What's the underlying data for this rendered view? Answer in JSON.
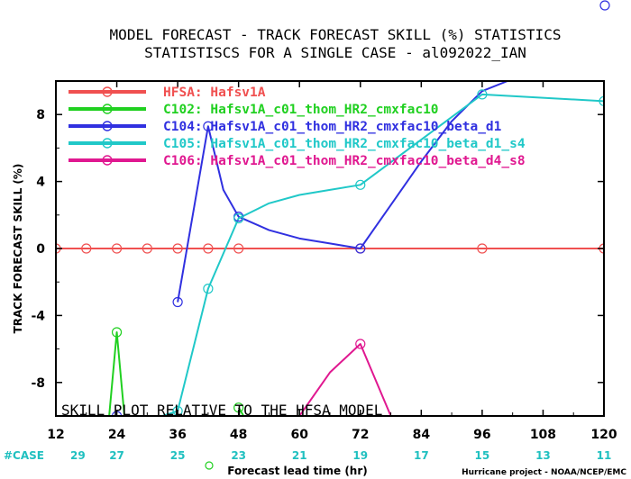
{
  "chart_data": {
    "type": "line",
    "title": "MODEL FORECAST - TRACK FORECAST SKILL (%) STATISTICS",
    "subtitle": "STATISTISCS FOR A SINGLE CASE - al092022_IAN",
    "xlabel": "Forecast lead time (hr)",
    "ylabel": "TRACK FORECAST SKILL (%)",
    "xlim": [
      12,
      120
    ],
    "ylim": [
      -10,
      10
    ],
    "xticks": [
      "12",
      "24",
      "36",
      "48",
      "60",
      "72",
      "84",
      "96",
      "108",
      "120"
    ],
    "yticks": [
      "8",
      "4",
      "0",
      "-4",
      "-8"
    ],
    "annotation": "SKILL PLOT RELATIVE TO THE HFSA MODEL",
    "credit": "Hurricane project - NOAA/NCEP/EMC",
    "case_label": "#CASE",
    "case_counts": [
      "29",
      "27",
      "25",
      "23",
      "21",
      "19",
      "17",
      "15",
      "13",
      "11"
    ],
    "grid": false,
    "legend_position": "top-left",
    "series": [
      {
        "name": "HFSA: Hafsv1A",
        "color": "#f05050",
        "x": [
          12,
          18,
          24,
          30,
          36,
          42,
          48,
          54,
          60,
          66,
          72,
          78,
          84,
          90,
          96,
          102,
          108,
          114,
          120
        ],
        "y": [
          0,
          0,
          0,
          0,
          0,
          0,
          0,
          0,
          0,
          0,
          0,
          0,
          0,
          0,
          0,
          0,
          0,
          0,
          0
        ],
        "markers": [
          12,
          18,
          24,
          30,
          36,
          42,
          48,
          72,
          96,
          120
        ]
      },
      {
        "name": "C102: Hafsv1A_c01_thom_HR2_cmxfac10",
        "color": "#20d020",
        "x": [
          22.5,
          24,
          25.5,
          47,
          48,
          49
        ],
        "y": [
          -10,
          -5,
          -10,
          -10,
          -9.5,
          -10
        ],
        "breaks": [
          3
        ],
        "markers": [
          24,
          48
        ]
      },
      {
        "name": "C104: Hafsv1A_c01_thom_HR2_cmxfac10_beta_d1",
        "color": "#3030e0",
        "x": [
          24,
          35,
          36,
          42,
          45,
          48,
          54,
          60,
          66,
          72,
          78,
          84,
          90,
          96,
          101
        ],
        "y": [
          -10,
          -10,
          -3.2,
          7.3,
          3.5,
          1.9,
          1.1,
          0.6,
          0.3,
          0.0,
          2.6,
          5.2,
          7.6,
          9.4,
          10
        ],
        "breaks": [
          1
        ],
        "markers": [
          24,
          36,
          42,
          48,
          72
        ]
      },
      {
        "name": "C105: Hafsv1A_c01_thom_HR2_cmxfac10_beta_d1_s4",
        "color": "#20c8c8",
        "x": [
          33,
          36,
          42,
          48,
          54,
          60,
          66,
          72,
          84,
          96,
          120
        ],
        "y": [
          -10,
          -9.7,
          -2.4,
          1.8,
          2.7,
          3.2,
          3.5,
          3.8,
          6.5,
          9.2,
          8.8
        ],
        "markers": [
          36,
          42,
          48,
          72,
          96,
          120
        ]
      },
      {
        "name": "C106: Hafsv1A_c01_thom_HR2_cmxfac10_beta_d4_s8",
        "color": "#e01890",
        "x": [
          60,
          66,
          72,
          78
        ],
        "y": [
          -10,
          -7.4,
          -5.7,
          -10
        ],
        "markers": [
          72
        ]
      }
    ]
  }
}
